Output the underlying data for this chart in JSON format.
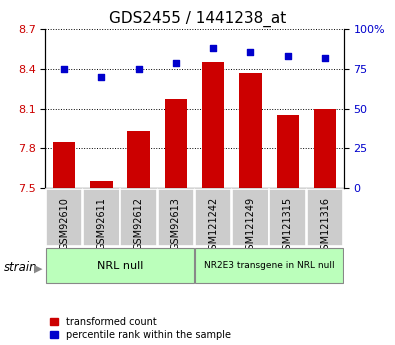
{
  "title": "GDS2455 / 1441238_at",
  "samples": [
    "GSM92610",
    "GSM92611",
    "GSM92612",
    "GSM92613",
    "GSM121242",
    "GSM121249",
    "GSM121315",
    "GSM121316"
  ],
  "transformed_count": [
    7.85,
    7.55,
    7.93,
    8.17,
    8.45,
    8.37,
    8.05,
    8.1
  ],
  "percentile_rank": [
    75,
    70,
    75,
    79,
    88,
    86,
    83,
    82
  ],
  "ylim_left": [
    7.5,
    8.7
  ],
  "ylim_right": [
    0,
    100
  ],
  "yticks_left": [
    7.5,
    7.8,
    8.1,
    8.4,
    8.7
  ],
  "yticks_right": [
    0,
    25,
    50,
    75,
    100
  ],
  "bar_color": "#cc0000",
  "dot_color": "#0000cc",
  "bar_width": 0.6,
  "group1_label": "NRL null",
  "group2_label": "NR2E3 transgene in NRL null",
  "group1_indices": [
    0,
    1,
    2,
    3
  ],
  "group2_indices": [
    4,
    5,
    6,
    7
  ],
  "group_bg_color": "#bbffbb",
  "sample_bg_color": "#cccccc",
  "legend_bar_label": "transformed count",
  "legend_dot_label": "percentile rank within the sample",
  "strain_label": "strain",
  "right_axis_label_color": "#0000cc",
  "left_axis_label_color": "#cc0000",
  "title_fontsize": 11,
  "tick_label_fontsize": 7,
  "axis_tick_fontsize": 8
}
